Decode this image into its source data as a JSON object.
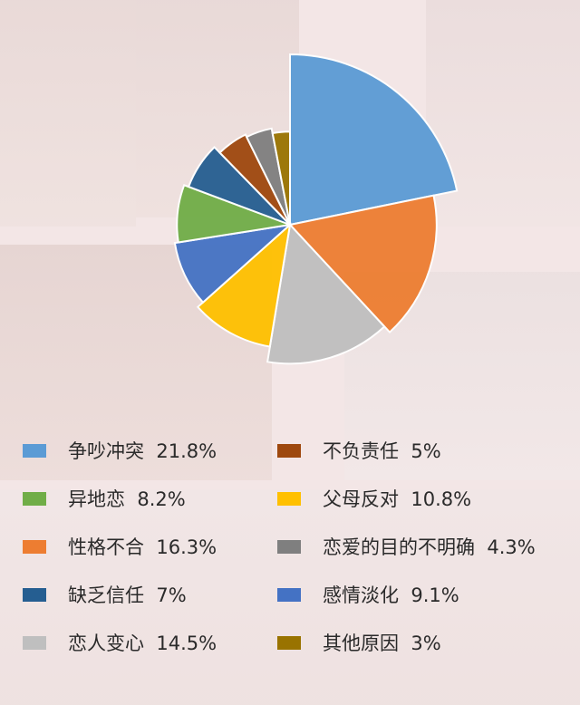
{
  "chart_data": {
    "type": "pie",
    "categories": [
      "争吵冲突",
      "性格不合",
      "恋人变心",
      "父母反对",
      "感情淡化",
      "异地恋",
      "缺乏信任",
      "不负责任",
      "恋爱的目的不明确",
      "其他原因"
    ],
    "values": [
      21.8,
      16.3,
      14.5,
      10.8,
      9.1,
      8.2,
      7,
      5,
      4.3,
      3
    ],
    "labels": [
      "21.8%",
      "16.3%",
      "14.5%",
      "10.8%",
      "9.1%",
      "8.2%",
      "7%",
      "5%",
      "4.3%",
      "3%"
    ],
    "colors": [
      "#5b9bd5",
      "#ed7d31",
      "#bfbfbf",
      "#ffc000",
      "#4472c4",
      "#70ad47",
      "#255e91",
      "#9e480e",
      "#7f7f7f",
      "#997300"
    ],
    "legend": [
      {
        "name": "争吵冲突",
        "value": "21.8%",
        "color": "#5b9bd5"
      },
      {
        "name": "不负责任",
        "value": "5%",
        "color": "#9e480e"
      },
      {
        "name": "异地恋",
        "value": "8.2%",
        "color": "#70ad47"
      },
      {
        "name": "父母反对",
        "value": "10.8%",
        "color": "#ffc000"
      },
      {
        "name": "性格不合",
        "value": "16.3%",
        "color": "#ed7d31"
      },
      {
        "name": "恋爱的目的不明确",
        "value": "4.3%",
        "color": "#7f7f7f"
      },
      {
        "name": "缺乏信任",
        "value": "7%",
        "color": "#255e91"
      },
      {
        "name": "感情淡化",
        "value": "9.1%",
        "color": "#4472c4"
      },
      {
        "name": "恋人变心",
        "value": "14.5%",
        "color": "#bfbfbf"
      },
      {
        "name": "其他原因",
        "value": "3%",
        "color": "#997300"
      }
    ]
  }
}
